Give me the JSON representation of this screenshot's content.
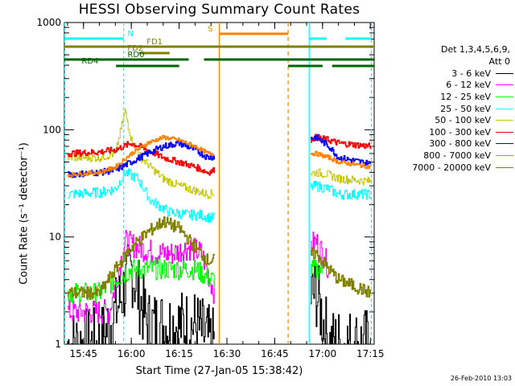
{
  "chart_data": {
    "type": "line",
    "title": "HESSI Observing Summary Count Rates",
    "xlabel": "Start Time (27-Jan-05 15:38:42)",
    "ylabel": "Count Rate (s⁻¹ detector⁻¹)",
    "yscale": "log",
    "ylim": [
      1,
      1000
    ],
    "yticks": [
      "1",
      "10",
      "100",
      "1000"
    ],
    "xlim_minutes": [
      15.65,
      17.27
    ],
    "xticks": [
      "15:45",
      "16:00",
      "16:15",
      "16:30",
      "16:45",
      "17:00",
      "17:15"
    ],
    "legend": {
      "header": [
        "Det 1,3,4,5,6,9,",
        "Att 0"
      ],
      "placement": "right-outside"
    },
    "flag_bars": [
      {
        "label": "N",
        "color": "#00ffff"
      },
      {
        "label": "S",
        "color": "#ff8000"
      },
      {
        "label": "FD1",
        "color": "#808000"
      },
      {
        "label": "FD2",
        "color": "#808000"
      },
      {
        "label": "RD0",
        "color": "#006400"
      },
      {
        "label": "RD4",
        "color": "#006400"
      }
    ],
    "series": [
      {
        "name": "3 - 6 keV",
        "color": "#000000",
        "x": [
          "15:40",
          "15:50",
          "15:55",
          "16:00",
          "16:05",
          "16:10",
          "16:15",
          "16:20",
          "16:25",
          "16:58",
          "17:02",
          "17:05",
          "17:15"
        ],
        "y": [
          1,
          1,
          2,
          5,
          1.5,
          1.5,
          1.5,
          1.5,
          1,
          3,
          1,
          1,
          1
        ]
      },
      {
        "name": "6 - 12 keV",
        "color": "#ff00ff",
        "x": [
          "15:40",
          "15:53",
          "15:58",
          "16:02",
          "16:08",
          "16:13",
          "16:18",
          "16:22",
          "16:26",
          "16:58",
          "17:00",
          "17:02"
        ],
        "y": [
          2,
          2,
          9,
          8,
          7,
          7,
          8,
          7,
          3,
          9,
          7,
          5
        ]
      },
      {
        "name": "12 - 25 keV",
        "color": "#00ff00",
        "x": [
          "15:40",
          "15:50",
          "15:55",
          "16:00",
          "16:05",
          "16:10",
          "16:15",
          "16:20",
          "16:25",
          "16:58",
          "17:00"
        ],
        "y": [
          3,
          3,
          4,
          5,
          5,
          5,
          5,
          5,
          4,
          5,
          5
        ]
      },
      {
        "name": "25 - 50 keV",
        "color": "#00ffff",
        "x": [
          "15:40",
          "15:50",
          "15:55",
          "15:58",
          "16:02",
          "16:06",
          "16:12",
          "16:18",
          "16:22",
          "16:25",
          "16:58",
          "17:02",
          "17:05",
          "17:15"
        ],
        "y": [
          25,
          26,
          28,
          40,
          35,
          22,
          17,
          16,
          16,
          15,
          30,
          28,
          25,
          25
        ]
      },
      {
        "name": "50 - 100 keV",
        "color": "#c8c800",
        "x": [
          "15:40",
          "15:50",
          "15:55",
          "15:58",
          "16:00",
          "16:03",
          "16:06",
          "16:10",
          "16:15",
          "16:20",
          "16:24",
          "16:58",
          "17:02",
          "17:05",
          "17:15"
        ],
        "y": [
          55,
          55,
          60,
          150,
          80,
          55,
          45,
          35,
          30,
          27,
          25,
          40,
          38,
          35,
          33
        ]
      },
      {
        "name": "100 - 300 keV",
        "color": "#ff0000",
        "x": [
          "15:40",
          "15:50",
          "15:55",
          "16:00",
          "16:05",
          "16:10",
          "16:15",
          "16:20",
          "16:24",
          "16:58",
          "17:02",
          "17:05",
          "17:15"
        ],
        "y": [
          60,
          62,
          65,
          75,
          65,
          55,
          50,
          45,
          40,
          85,
          80,
          75,
          70
        ]
      },
      {
        "name": "300 - 800 keV",
        "color": "#0000ff",
        "x": [
          "15:40",
          "15:50",
          "15:55",
          "16:00",
          "16:05",
          "16:10",
          "16:15",
          "16:20",
          "16:24",
          "16:58",
          "17:02",
          "17:05",
          "17:15"
        ],
        "y": [
          38,
          40,
          42,
          50,
          60,
          70,
          75,
          65,
          55,
          85,
          70,
          55,
          48
        ]
      },
      {
        "name": "800 - 7000 keV",
        "color": "#ff8000",
        "x": [
          "15:40",
          "15:50",
          "15:55",
          "16:00",
          "16:05",
          "16:10",
          "16:15",
          "16:20",
          "16:24",
          "16:58",
          "17:02",
          "17:05",
          "17:15"
        ],
        "y": [
          38,
          40,
          45,
          60,
          75,
          85,
          80,
          70,
          60,
          60,
          55,
          50,
          45
        ]
      },
      {
        "name": "7000 - 20000 keV",
        "color": "#808000",
        "x": [
          "15:40",
          "15:50",
          "15:55",
          "16:00",
          "16:05",
          "16:10",
          "16:15",
          "16:20",
          "16:24",
          "16:58",
          "17:02",
          "17:05",
          "17:15"
        ],
        "y": [
          3,
          3,
          5,
          8,
          11,
          14,
          12,
          8,
          6,
          7,
          5,
          4,
          3
        ]
      }
    ]
  },
  "footer": {
    "date_stamp": "26-Feb-2010 13:03"
  }
}
